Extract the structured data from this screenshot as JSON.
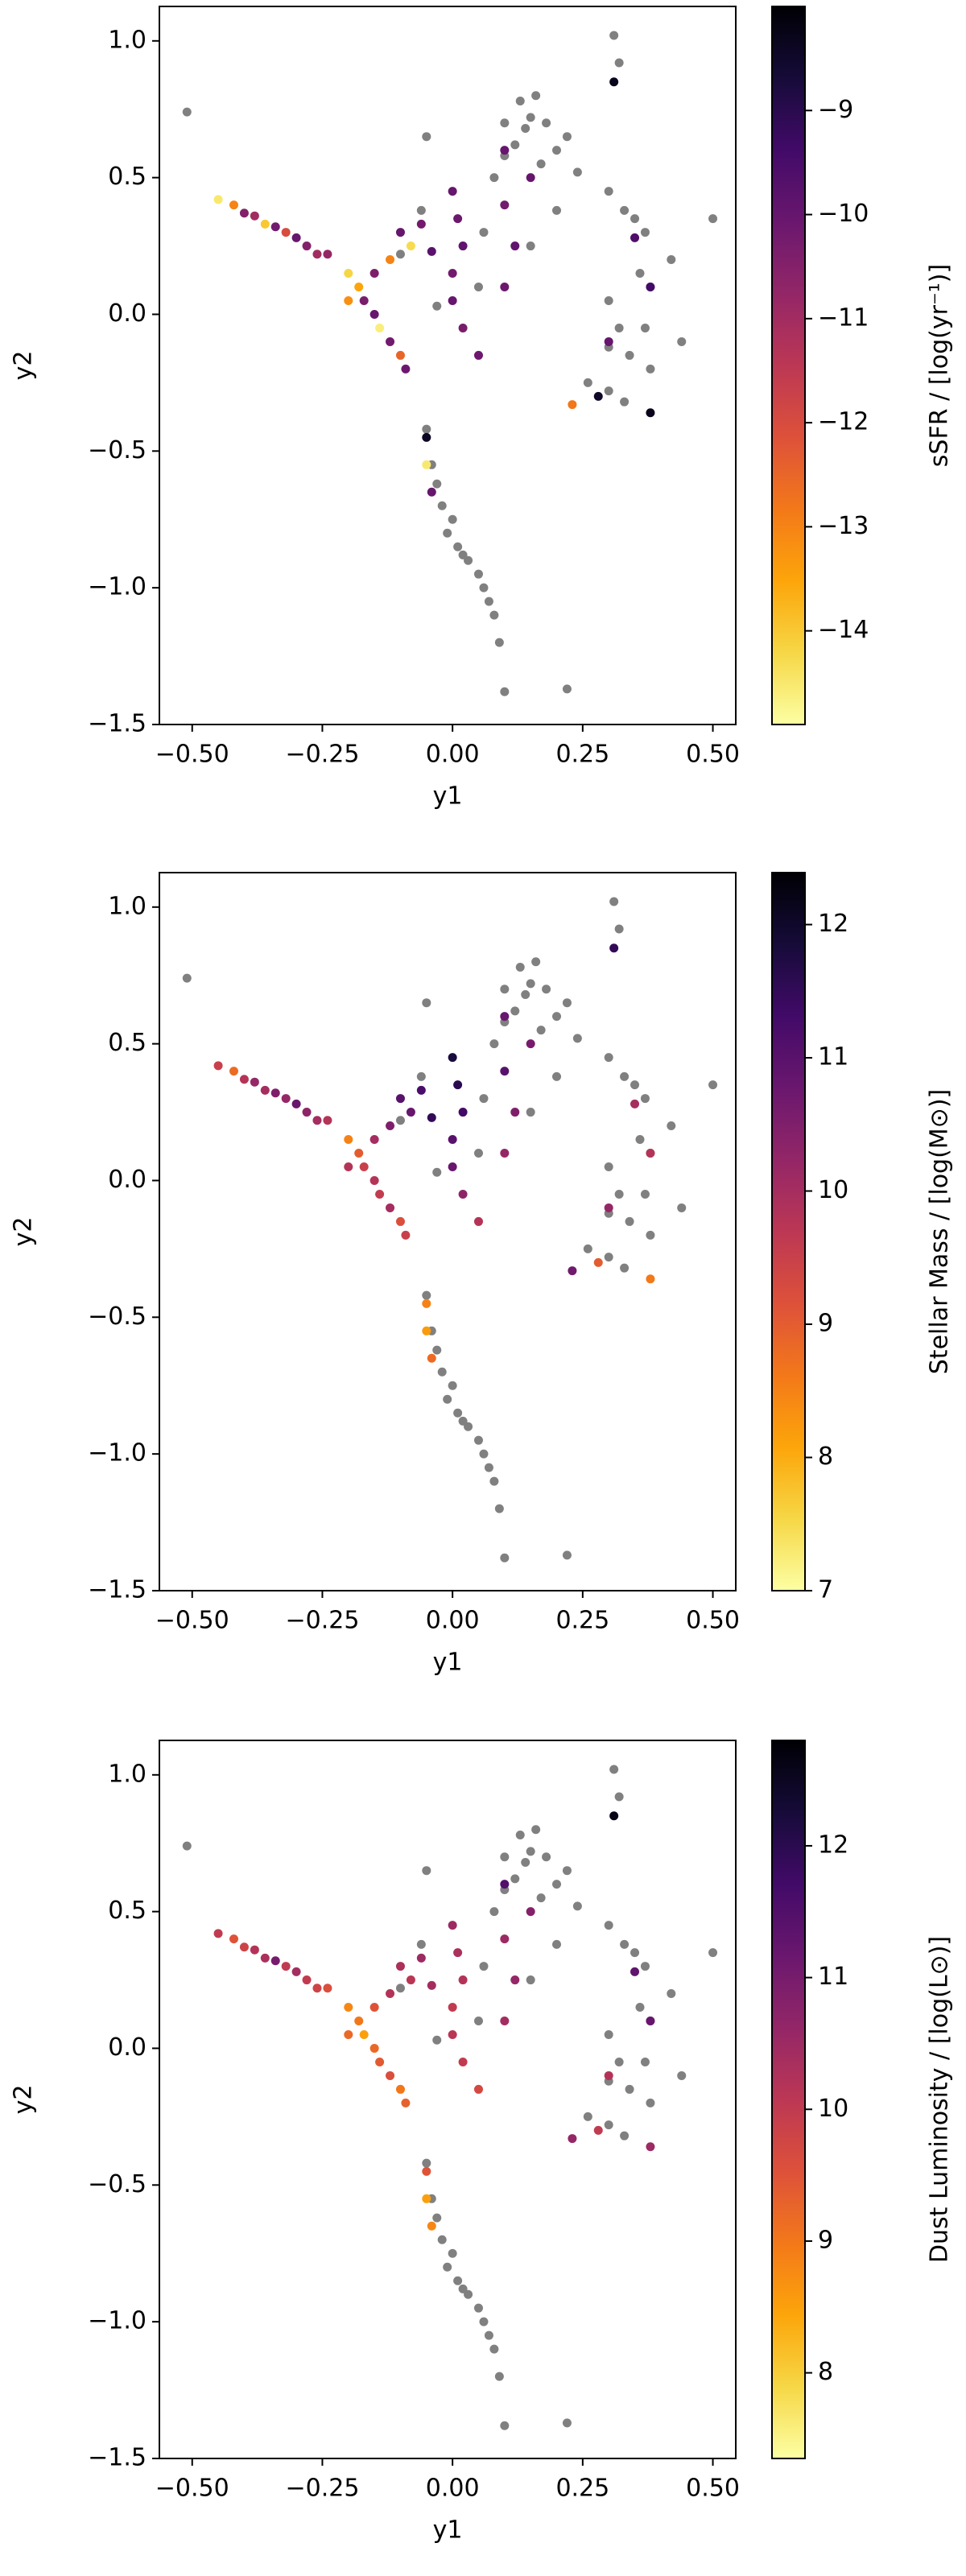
{
  "chart_data": [
    {
      "type": "scatter",
      "xlabel": "y1",
      "ylabel": "y2",
      "xlim": [
        -0.563,
        0.544
      ],
      "ylim": [
        -1.5,
        1.126
      ],
      "xticks": [
        {
          "value": -0.5,
          "label": "−0.50"
        },
        {
          "value": -0.25,
          "label": "−0.25"
        },
        {
          "value": 0,
          "label": "0.00"
        },
        {
          "value": 0.25,
          "label": "0.25"
        },
        {
          "value": 0.5,
          "label": "0.50"
        }
      ],
      "yticks": [
        {
          "value": -1.5,
          "label": "−1.5"
        },
        {
          "value": -1,
          "label": "−1.0"
        },
        {
          "value": -0.5,
          "label": "−0.5"
        },
        {
          "value": 0,
          "label": "0.0"
        },
        {
          "value": 0.5,
          "label": "0.5"
        },
        {
          "value": 1,
          "label": "1.0"
        }
      ],
      "series": [
        {
          "color": "#808080",
          "x": [
            -0.51,
            -0.05,
            0.1,
            0.12,
            0.14,
            0.15,
            0.13,
            0.16,
            0.18,
            0.2,
            0.08,
            0.17,
            0.22,
            0.24,
            0.1,
            0.31,
            0.32,
            0.3,
            0.33,
            0.35,
            0.37,
            0.36,
            0.38,
            0.3,
            0.32,
            0.3,
            0.34,
            0.37,
            0.38,
            0.3,
            0.33,
            0.42,
            0.5,
            0.44,
            -0.05,
            -0.04,
            -0.03,
            -0.02,
            0.0,
            -0.01,
            0.01,
            0.02,
            0.03,
            0.05,
            0.06,
            0.07,
            0.08,
            0.09,
            0.1,
            0.22,
            -0.1,
            0.05,
            -0.03,
            0.06,
            -0.06,
            0.26,
            0.15,
            0.2
          ],
          "y": [
            0.74,
            0.65,
            0.58,
            0.62,
            0.68,
            0.72,
            0.78,
            0.8,
            0.7,
            0.6,
            0.5,
            0.55,
            0.65,
            0.52,
            0.7,
            1.02,
            0.92,
            0.45,
            0.38,
            0.35,
            0.3,
            0.15,
            0.1,
            0.05,
            -0.05,
            -0.12,
            -0.15,
            -0.05,
            -0.2,
            -0.28,
            -0.32,
            0.2,
            0.35,
            -0.1,
            -0.42,
            -0.55,
            -0.62,
            -0.7,
            -0.75,
            -0.8,
            -0.85,
            -0.88,
            -0.9,
            -0.95,
            -1.0,
            -1.05,
            -1.1,
            -1.2,
            -1.38,
            -1.37,
            0.22,
            0.1,
            0.03,
            0.3,
            0.38,
            -0.25,
            0.25,
            0.38
          ]
        },
        {
          "colormap": "inferno_r",
          "x": [
            -0.45,
            -0.42,
            -0.4,
            -0.38,
            -0.36,
            -0.34,
            -0.32,
            -0.3,
            -0.28,
            -0.26,
            -0.24,
            -0.2,
            -0.18,
            -0.17,
            -0.15,
            -0.14,
            -0.12,
            -0.1,
            -0.09,
            -0.12,
            -0.1,
            -0.08,
            -0.15,
            -0.2,
            -0.06,
            -0.04,
            0.0,
            0.01,
            0.02,
            0.0,
            0.0,
            0.02,
            0.05,
            -0.05,
            -0.05,
            -0.04,
            0.1,
            0.1,
            0.12,
            0.1,
            0.28,
            0.3,
            0.35,
            0.38,
            0.31,
            0.38,
            0.23,
            0.15
          ],
          "y": [
            0.42,
            0.4,
            0.37,
            0.36,
            0.33,
            0.32,
            0.3,
            0.28,
            0.25,
            0.22,
            0.22,
            0.15,
            0.1,
            0.05,
            0.0,
            -0.05,
            -0.1,
            -0.15,
            -0.2,
            0.2,
            0.3,
            0.25,
            0.15,
            0.05,
            0.33,
            0.23,
            0.45,
            0.35,
            0.25,
            0.15,
            0.05,
            -0.05,
            -0.15,
            -0.45,
            -0.55,
            -0.65,
            0.6,
            0.4,
            0.25,
            0.1,
            -0.3,
            -0.1,
            0.28,
            0.1,
            0.85,
            -0.36,
            -0.33,
            0.5
          ],
          "c": [
            -14.5,
            -13,
            -10.5,
            -11,
            -14,
            -10.2,
            -12,
            -10,
            -10.5,
            -11,
            -10.8,
            -14.2,
            -13.5,
            -10.3,
            -10,
            -14.6,
            -10.2,
            -12.5,
            -10.1,
            -13,
            -10,
            -14.3,
            -10.4,
            -13.2,
            -10.2,
            -9.8,
            -10,
            -10.1,
            -9.9,
            -10.2,
            -10,
            -10.3,
            -10.1,
            -8.4,
            -14.5,
            -10,
            -10,
            -10.2,
            -9.9,
            -10.1,
            -8.5,
            -10,
            -9.6,
            -9.4,
            -8.3,
            -8.3,
            -12.8,
            -10
          ]
        }
      ],
      "colorbar": {
        "label": "sSFR / [log(yr⁻¹)]",
        "clim": [
          -14.9,
          -8.0
        ],
        "ticks": [
          {
            "value": -14,
            "label": "−14"
          },
          {
            "value": -13,
            "label": "−13"
          },
          {
            "value": -12,
            "label": "−12"
          },
          {
            "value": -11,
            "label": "−11"
          },
          {
            "value": -10,
            "label": "−10"
          },
          {
            "value": -9,
            "label": "−9"
          }
        ]
      }
    },
    {
      "type": "scatter",
      "xlabel": "y1",
      "ylabel": "y2",
      "xlim": [
        -0.563,
        0.544
      ],
      "ylim": [
        -1.5,
        1.126
      ],
      "xticks": [
        {
          "value": -0.5,
          "label": "−0.50"
        },
        {
          "value": -0.25,
          "label": "−0.25"
        },
        {
          "value": 0,
          "label": "0.00"
        },
        {
          "value": 0.25,
          "label": "0.25"
        },
        {
          "value": 0.5,
          "label": "0.50"
        }
      ],
      "yticks": [
        {
          "value": -1.5,
          "label": "−1.5"
        },
        {
          "value": -1,
          "label": "−1.0"
        },
        {
          "value": -0.5,
          "label": "−0.5"
        },
        {
          "value": 0,
          "label": "0.0"
        },
        {
          "value": 0.5,
          "label": "0.5"
        },
        {
          "value": 1,
          "label": "1.0"
        }
      ],
      "series": [
        {
          "color": "#808080",
          "x": [
            -0.51,
            -0.05,
            0.1,
            0.12,
            0.14,
            0.15,
            0.13,
            0.16,
            0.18,
            0.2,
            0.08,
            0.17,
            0.22,
            0.24,
            0.1,
            0.31,
            0.32,
            0.3,
            0.33,
            0.35,
            0.37,
            0.36,
            0.38,
            0.3,
            0.32,
            0.3,
            0.34,
            0.37,
            0.38,
            0.3,
            0.33,
            0.42,
            0.5,
            0.44,
            -0.05,
            -0.04,
            -0.03,
            -0.02,
            0.0,
            -0.01,
            0.01,
            0.02,
            0.03,
            0.05,
            0.06,
            0.07,
            0.08,
            0.09,
            0.1,
            0.22,
            -0.1,
            0.05,
            -0.03,
            0.06,
            -0.06,
            0.26,
            0.15,
            0.2
          ],
          "y": [
            0.74,
            0.65,
            0.58,
            0.62,
            0.68,
            0.72,
            0.78,
            0.8,
            0.7,
            0.6,
            0.5,
            0.55,
            0.65,
            0.52,
            0.7,
            1.02,
            0.92,
            0.45,
            0.38,
            0.35,
            0.3,
            0.15,
            0.1,
            0.05,
            -0.05,
            -0.12,
            -0.15,
            -0.05,
            -0.2,
            -0.28,
            -0.32,
            0.2,
            0.35,
            -0.1,
            -0.42,
            -0.55,
            -0.62,
            -0.7,
            -0.75,
            -0.8,
            -0.85,
            -0.88,
            -0.9,
            -0.95,
            -1.0,
            -1.05,
            -1.1,
            -1.2,
            -1.38,
            -1.37,
            0.22,
            0.1,
            0.03,
            0.3,
            0.38,
            -0.25,
            0.25,
            0.38
          ]
        },
        {
          "colormap": "inferno_r",
          "x": [
            -0.45,
            -0.42,
            -0.4,
            -0.38,
            -0.36,
            -0.34,
            -0.32,
            -0.3,
            -0.28,
            -0.26,
            -0.24,
            -0.2,
            -0.18,
            -0.17,
            -0.15,
            -0.14,
            -0.12,
            -0.1,
            -0.09,
            -0.12,
            -0.1,
            -0.08,
            -0.15,
            -0.2,
            -0.06,
            -0.04,
            0.0,
            0.01,
            0.02,
            0.0,
            0.0,
            0.02,
            0.05,
            -0.05,
            -0.05,
            -0.04,
            0.1,
            0.1,
            0.12,
            0.1,
            0.28,
            0.3,
            0.35,
            0.38,
            0.31,
            0.38,
            0.23,
            0.15
          ],
          "y": [
            0.42,
            0.4,
            0.37,
            0.36,
            0.33,
            0.32,
            0.3,
            0.28,
            0.25,
            0.22,
            0.22,
            0.15,
            0.1,
            0.05,
            0.0,
            -0.05,
            -0.1,
            -0.15,
            -0.2,
            0.2,
            0.3,
            0.25,
            0.15,
            0.05,
            0.33,
            0.23,
            0.45,
            0.35,
            0.25,
            0.15,
            0.05,
            -0.05,
            -0.15,
            -0.45,
            -0.55,
            -0.65,
            0.6,
            0.4,
            0.25,
            0.1,
            -0.3,
            -0.1,
            0.28,
            0.1,
            0.85,
            -0.36,
            -0.33,
            0.5
          ],
          "c": [
            9.5,
            8.8,
            9.8,
            10.2,
            10,
            10.5,
            10.2,
            10.8,
            10.3,
            10,
            9.8,
            8.5,
            9,
            9.5,
            9.8,
            9.6,
            10,
            9.2,
            9.5,
            10.5,
            11,
            10.8,
            10,
            9.8,
            11.2,
            11.5,
            11.8,
            11.6,
            11.3,
            11,
            10.8,
            10.3,
            9.8,
            8.5,
            8.2,
            8.8,
            10.8,
            11,
            10.5,
            10.2,
            9,
            10.2,
            10,
            9.8,
            11.5,
            8.6,
            10.7,
            10.6
          ]
        }
      ],
      "colorbar": {
        "label": "Stellar Mass / [log(M⊙)]",
        "clim": [
          7,
          12.39
        ],
        "ticks": [
          7,
          8,
          9,
          10,
          11,
          12
        ]
      }
    },
    {
      "type": "scatter",
      "xlabel": "y1",
      "ylabel": "y2",
      "xlim": [
        -0.563,
        0.544
      ],
      "ylim": [
        -1.5,
        1.126
      ],
      "xticks": [
        {
          "value": -0.5,
          "label": "−0.50"
        },
        {
          "value": -0.25,
          "label": "−0.25"
        },
        {
          "value": 0,
          "label": "0.00"
        },
        {
          "value": 0.25,
          "label": "0.25"
        },
        {
          "value": 0.5,
          "label": "0.50"
        }
      ],
      "yticks": [
        {
          "value": -1.5,
          "label": "−1.5"
        },
        {
          "value": -1,
          "label": "−1.0"
        },
        {
          "value": -0.5,
          "label": "−0.5"
        },
        {
          "value": 0,
          "label": "0.0"
        },
        {
          "value": 0.5,
          "label": "0.5"
        },
        {
          "value": 1,
          "label": "1.0"
        }
      ],
      "series": [
        {
          "color": "#808080",
          "x": [
            -0.51,
            -0.05,
            0.1,
            0.12,
            0.14,
            0.15,
            0.13,
            0.16,
            0.18,
            0.2,
            0.08,
            0.17,
            0.22,
            0.24,
            0.1,
            0.31,
            0.32,
            0.3,
            0.33,
            0.35,
            0.37,
            0.36,
            0.38,
            0.3,
            0.32,
            0.3,
            0.34,
            0.37,
            0.38,
            0.3,
            0.33,
            0.42,
            0.5,
            0.44,
            -0.05,
            -0.04,
            -0.03,
            -0.02,
            0.0,
            -0.01,
            0.01,
            0.02,
            0.03,
            0.05,
            0.06,
            0.07,
            0.08,
            0.09,
            0.1,
            0.22,
            -0.1,
            0.05,
            -0.03,
            0.06,
            -0.06,
            0.26,
            0.15,
            0.2
          ],
          "y": [
            0.74,
            0.65,
            0.58,
            0.62,
            0.68,
            0.72,
            0.78,
            0.8,
            0.7,
            0.6,
            0.5,
            0.55,
            0.65,
            0.52,
            0.7,
            1.02,
            0.92,
            0.45,
            0.38,
            0.35,
            0.3,
            0.15,
            0.1,
            0.05,
            -0.05,
            -0.12,
            -0.15,
            -0.05,
            -0.2,
            -0.28,
            -0.32,
            0.2,
            0.35,
            -0.1,
            -0.42,
            -0.55,
            -0.62,
            -0.7,
            -0.75,
            -0.8,
            -0.85,
            -0.88,
            -0.9,
            -0.95,
            -1.0,
            -1.05,
            -1.1,
            -1.2,
            -1.38,
            -1.37,
            0.22,
            0.1,
            0.03,
            0.3,
            0.38,
            -0.25,
            0.25,
            0.38
          ]
        },
        {
          "colormap": "inferno_r",
          "x": [
            -0.45,
            -0.42,
            -0.4,
            -0.38,
            -0.36,
            -0.34,
            -0.32,
            -0.3,
            -0.28,
            -0.26,
            -0.24,
            -0.2,
            -0.18,
            -0.17,
            -0.15,
            -0.14,
            -0.12,
            -0.1,
            -0.09,
            -0.12,
            -0.1,
            -0.08,
            -0.15,
            -0.2,
            -0.06,
            -0.04,
            0.0,
            0.01,
            0.02,
            0.0,
            0.0,
            0.02,
            0.05,
            -0.05,
            -0.05,
            -0.04,
            0.1,
            0.1,
            0.12,
            0.1,
            0.28,
            0.3,
            0.35,
            0.38,
            0.31,
            0.38,
            0.23,
            0.15
          ],
          "y": [
            0.42,
            0.4,
            0.37,
            0.36,
            0.33,
            0.32,
            0.3,
            0.28,
            0.25,
            0.22,
            0.22,
            0.15,
            0.1,
            0.05,
            0.0,
            -0.05,
            -0.1,
            -0.15,
            -0.2,
            0.2,
            0.3,
            0.25,
            0.15,
            0.05,
            0.33,
            0.23,
            0.45,
            0.35,
            0.25,
            0.15,
            0.05,
            -0.05,
            -0.15,
            -0.45,
            -0.55,
            -0.65,
            0.6,
            0.4,
            0.25,
            0.1,
            -0.3,
            -0.1,
            0.28,
            0.1,
            0.85,
            -0.36,
            -0.33,
            0.5
          ],
          "c": [
            10,
            9.5,
            9.8,
            10.2,
            10.3,
            11,
            10,
            10.4,
            10,
            9.8,
            9.6,
            8.8,
            9,
            8.5,
            9.2,
            9.4,
            9.6,
            9,
            9.3,
            10.2,
            10.3,
            10.1,
            9.5,
            9.2,
            10.5,
            10.4,
            10.5,
            10.3,
            10.2,
            10,
            10.1,
            10,
            9.7,
            9.5,
            8.5,
            8.8,
            11.5,
            10.5,
            10.6,
            10.4,
            10,
            10.2,
            11.3,
            11.2,
            12.6,
            10.5,
            10.6,
            10.8
          ]
        }
      ],
      "colorbar": {
        "label": "Dust Luminosity / [log(L⊙)]",
        "clim": [
          7.35,
          12.8
        ],
        "ticks": [
          8,
          9,
          10,
          11,
          12
        ]
      }
    }
  ]
}
